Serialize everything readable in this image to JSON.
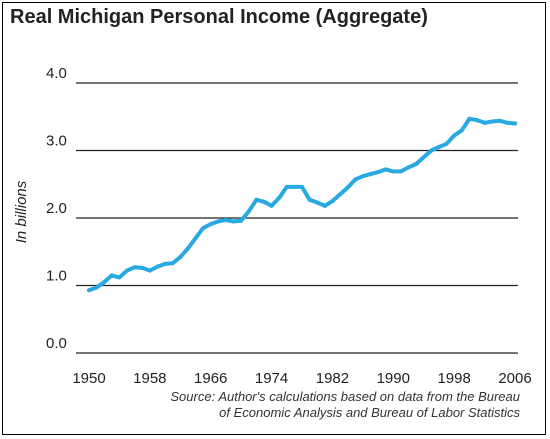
{
  "chart_data": {
    "type": "line",
    "title": "Real Michigan Personal Income (Aggregate)",
    "ylabel": "In billions",
    "xlabel": "",
    "ylim": [
      0.0,
      4.0
    ],
    "yticks": [
      "0.0",
      "1.0",
      "2.0",
      "3.0",
      "4.0"
    ],
    "xticks": [
      "1950",
      "1958",
      "1966",
      "1974",
      "1982",
      "1990",
      "1998",
      "2006"
    ],
    "grid": "horizontal",
    "line_color": "#29a9e1",
    "source": [
      "Source: Author's calculations based on data from the Bureau",
      "of Economic Analysis and Bureau of Labor Statistics"
    ],
    "x": [
      1950,
      1951,
      1952,
      1953,
      1954,
      1955,
      1956,
      1957,
      1958,
      1959,
      1960,
      1961,
      1962,
      1963,
      1964,
      1965,
      1966,
      1967,
      1968,
      1969,
      1970,
      1971,
      1972,
      1973,
      1974,
      1975,
      1976,
      1977,
      1978,
      1979,
      1980,
      1981,
      1982,
      1983,
      1984,
      1985,
      1986,
      1987,
      1988,
      1989,
      1990,
      1991,
      1992,
      1993,
      1994,
      1995,
      1996,
      1997,
      1998,
      1999,
      2000,
      2001,
      2002,
      2003,
      2004,
      2005,
      2006
    ],
    "values": [
      0.93,
      0.97,
      1.05,
      1.15,
      1.12,
      1.22,
      1.27,
      1.26,
      1.22,
      1.28,
      1.32,
      1.33,
      1.42,
      1.55,
      1.7,
      1.85,
      1.91,
      1.95,
      1.97,
      1.95,
      1.96,
      2.1,
      2.27,
      2.24,
      2.18,
      2.3,
      2.46,
      2.46,
      2.46,
      2.27,
      2.23,
      2.18,
      2.25,
      2.35,
      2.45,
      2.57,
      2.62,
      2.65,
      2.68,
      2.72,
      2.69,
      2.69,
      2.75,
      2.8,
      2.9,
      3.0,
      3.05,
      3.1,
      3.22,
      3.3,
      3.47,
      3.45,
      3.41,
      3.43,
      3.44,
      3.41,
      3.4
    ]
  }
}
